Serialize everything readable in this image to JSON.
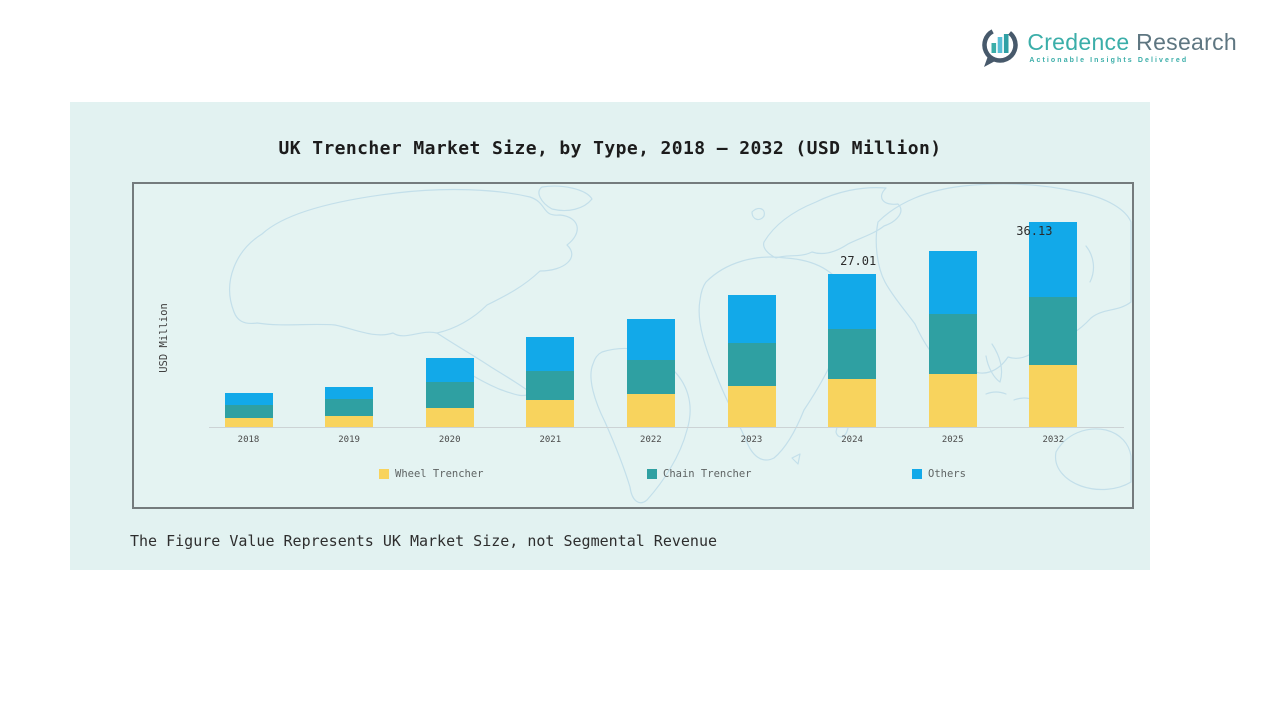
{
  "logo": {
    "name_primary": "Credence",
    "name_secondary": "Research",
    "tagline": "Actionable Insights Delivered",
    "colors": {
      "primary": "#3BAEA9",
      "secondary": "#5E7681"
    }
  },
  "panel": {
    "title": "UK Trencher Market Size, by Type, 2018 – 2032 (USD Million)",
    "footnote": "The Figure Value Represents UK Market Size, not Segmental Revenue"
  },
  "chart_data": {
    "type": "bar",
    "stacked": true,
    "title": "UK Trencher Market Size, by Type, 2018 – 2032 (USD Million)",
    "xlabel": "",
    "ylabel": "USD Million",
    "categories": [
      "2018",
      "2019",
      "2020",
      "2021",
      "2022",
      "2023",
      "2024",
      "2025",
      "2032"
    ],
    "series": [
      {
        "name": "Wheel Trencher",
        "color": "#F8D35D",
        "values": [
          1.6,
          1.9,
          3.3,
          4.7,
          5.8,
          7.3,
          8.4,
          9.3,
          10.9
        ]
      },
      {
        "name": "Chain Trencher",
        "color": "#2FA0A2",
        "values": [
          2.2,
          3.1,
          4.7,
          5.1,
          6.1,
          7.5,
          8.8,
          10.6,
          12.1
        ]
      },
      {
        "name": "Others",
        "color": "#12A9E9",
        "values": [
          2.2,
          2.0,
          4.2,
          6.0,
          7.1,
          8.4,
          9.81,
          11.2,
          13.13
        ]
      }
    ],
    "totals": [
      6.0,
      7.0,
      12.2,
      15.8,
      19.0,
      23.2,
      27.01,
      31.1,
      36.13
    ],
    "data_labels": [
      {
        "category": "2024",
        "text": "27.01",
        "position": "above"
      },
      {
        "category": "2032",
        "text": "36.13",
        "position": "overlap-left"
      }
    ],
    "legend_position": "bottom",
    "grid": false,
    "background": "world-map-outline",
    "ylim": [
      0,
      40
    ]
  }
}
